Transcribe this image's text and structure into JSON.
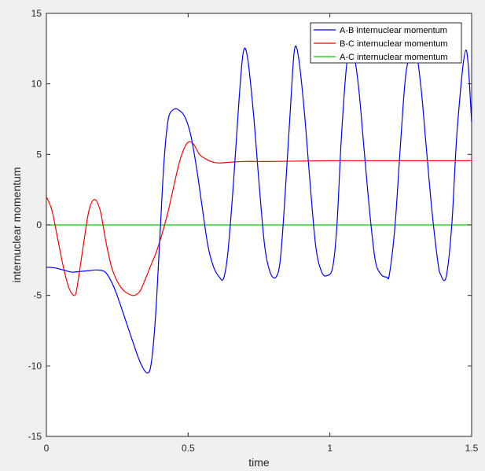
{
  "chart_data": {
    "type": "line",
    "xlabel": "time",
    "ylabel": "internuclear momentum",
    "xlim": [
      0,
      1.5
    ],
    "ylim": [
      -15,
      15
    ],
    "xticks": [
      0,
      0.5,
      1,
      1.5
    ],
    "xtick_labels": [
      "0",
      "0.5",
      "1",
      "1.5"
    ],
    "yticks": [
      -15,
      -10,
      -5,
      0,
      5,
      10,
      15
    ],
    "ytick_labels": [
      "-15",
      "-10",
      "-5",
      "0",
      "5",
      "10",
      "15"
    ],
    "grid": false,
    "legend_position": "top-right",
    "series": [
      {
        "name": "A-B internuclear momentum",
        "color": "#0000ff",
        "x": [
          0,
          0.03,
          0.06,
          0.09,
          0.12,
          0.15,
          0.18,
          0.21,
          0.24,
          0.27,
          0.3,
          0.33,
          0.355,
          0.37,
          0.385,
          0.4,
          0.415,
          0.43,
          0.45,
          0.47,
          0.49,
          0.51,
          0.53,
          0.55,
          0.57,
          0.59,
          0.61,
          0.625,
          0.64,
          0.66,
          0.68,
          0.695,
          0.71,
          0.73,
          0.75,
          0.77,
          0.79,
          0.81,
          0.825,
          0.84,
          0.86,
          0.875,
          0.89,
          0.91,
          0.93,
          0.95,
          0.97,
          0.99,
          1.01,
          1.025,
          1.04,
          1.06,
          1.08,
          1.1,
          1.12,
          1.14,
          1.16,
          1.18,
          1.2,
          1.21,
          1.23,
          1.25,
          1.27,
          1.3,
          1.32,
          1.34,
          1.36,
          1.38,
          1.39,
          1.41,
          1.43,
          1.45,
          1.48,
          1.5
        ],
        "y": [
          -3.0,
          -3.05,
          -3.2,
          -3.35,
          -3.3,
          -3.25,
          -3.2,
          -3.4,
          -4.5,
          -6.2,
          -8.0,
          -9.7,
          -10.5,
          -9.8,
          -6.5,
          -1.0,
          4.5,
          7.5,
          8.2,
          8.1,
          7.6,
          6.3,
          4.0,
          1.2,
          -1.5,
          -3.0,
          -3.7,
          -3.8,
          -2.0,
          3.0,
          9.0,
          12.3,
          11.8,
          8.0,
          3.0,
          -1.5,
          -3.4,
          -3.7,
          -2.5,
          1.5,
          8.0,
          12.4,
          11.8,
          8.0,
          3.0,
          -1.5,
          -3.3,
          -3.6,
          -3.0,
          0.0,
          6.0,
          11.5,
          12.4,
          10.0,
          5.5,
          1.0,
          -2.5,
          -3.5,
          -3.7,
          -3.5,
          0.0,
          6.0,
          11.0,
          12.4,
          10.0,
          5.5,
          1.0,
          -2.5,
          -3.5,
          -3.7,
          0.0,
          7.0,
          12.4,
          7.3
        ]
      },
      {
        "name": "B-C internuclear momentum",
        "color": "#ff0000",
        "x": [
          0,
          0.02,
          0.04,
          0.06,
          0.08,
          0.1,
          0.11,
          0.13,
          0.15,
          0.17,
          0.19,
          0.21,
          0.23,
          0.25,
          0.27,
          0.29,
          0.31,
          0.33,
          0.35,
          0.37,
          0.39,
          0.41,
          0.43,
          0.45,
          0.47,
          0.49,
          0.505,
          0.52,
          0.54,
          0.56,
          0.58,
          0.6,
          0.62,
          0.65,
          0.7,
          0.8,
          1.0,
          1.2,
          1.5
        ],
        "y": [
          2.0,
          1.0,
          -1.0,
          -3.0,
          -4.5,
          -5.0,
          -4.2,
          -1.5,
          1.0,
          1.8,
          1.0,
          -1.2,
          -3.0,
          -4.0,
          -4.6,
          -4.9,
          -5.0,
          -4.7,
          -3.8,
          -2.8,
          -1.8,
          -0.5,
          1.0,
          2.8,
          4.5,
          5.6,
          5.9,
          5.7,
          5.0,
          4.7,
          4.5,
          4.4,
          4.4,
          4.45,
          4.5,
          4.5,
          4.55,
          4.55,
          4.55
        ]
      },
      {
        "name": "A-C internuclear momentum",
        "color": "#00cc00",
        "x": [
          0,
          1.5
        ],
        "y": [
          0,
          0
        ]
      }
    ]
  }
}
